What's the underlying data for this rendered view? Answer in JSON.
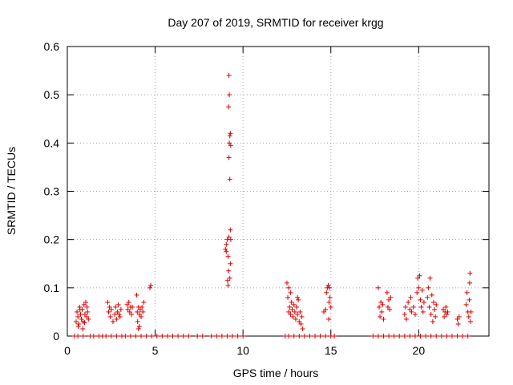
{
  "chart_data": {
    "type": "scatter",
    "title": "Day 207 of 2019, SRMTID for receiver krgg",
    "xlabel": "GPS time / hours",
    "ylabel": "SRMTID / TECUs",
    "xlim": [
      0,
      24
    ],
    "ylim": [
      0,
      0.6
    ],
    "xticks": [
      0,
      5,
      10,
      15,
      20
    ],
    "yticks": [
      0,
      0.1,
      0.2,
      0.3,
      0.4,
      0.5,
      0.6
    ],
    "xtick_labels": [
      "0",
      "5",
      "10",
      "15",
      "20"
    ],
    "ytick_labels": [
      "0",
      "0.1",
      "0.2",
      "0.3",
      "0.4",
      "0.5",
      "0.6"
    ],
    "grid": true,
    "marker": "+",
    "marker_color": "#e00000",
    "series": [
      {
        "name": "SRMTID",
        "points": [
          [
            0.5,
            0.03
          ],
          [
            0.55,
            0.05
          ],
          [
            0.6,
            0.04
          ],
          [
            0.65,
            0.025
          ],
          [
            0.7,
            0.06
          ],
          [
            0.75,
            0.045
          ],
          [
            0.8,
            0.035
          ],
          [
            0.85,
            0.055
          ],
          [
            0.9,
            0.03
          ],
          [
            0.95,
            0.065
          ],
          [
            1.0,
            0.045
          ],
          [
            1.05,
            0.07
          ],
          [
            1.1,
            0.04
          ],
          [
            1.15,
            0.05
          ],
          [
            1.2,
            0.035
          ],
          [
            0.62,
            0.02
          ],
          [
            0.88,
            0.015
          ],
          [
            1.12,
            0.06
          ],
          [
            0.72,
            0.055
          ],
          [
            0.98,
            0.028
          ],
          [
            2.3,
            0.07
          ],
          [
            2.35,
            0.05
          ],
          [
            2.4,
            0.06
          ],
          [
            2.45,
            0.04
          ],
          [
            2.5,
            0.055
          ],
          [
            2.7,
            0.045
          ],
          [
            2.75,
            0.06
          ],
          [
            2.8,
            0.035
          ],
          [
            2.85,
            0.05
          ],
          [
            2.9,
            0.065
          ],
          [
            3.0,
            0.04
          ],
          [
            3.05,
            0.055
          ],
          [
            2.6,
            0.03
          ],
          [
            2.95,
            0.045
          ],
          [
            3.4,
            0.065
          ],
          [
            3.45,
            0.055
          ],
          [
            3.5,
            0.07
          ],
          [
            3.55,
            0.05
          ],
          [
            3.6,
            0.06
          ],
          [
            3.65,
            0.045
          ],
          [
            3.7,
            0.06
          ],
          [
            3.95,
            0.085
          ],
          [
            4.0,
            0.03
          ],
          [
            4.05,
            0.06
          ],
          [
            4.1,
            0.045
          ],
          [
            4.15,
            0.055
          ],
          [
            4.2,
            0.04
          ],
          [
            4.25,
            0.06
          ],
          [
            4.3,
            0.05
          ],
          [
            4.35,
            0.07
          ],
          [
            4.05,
            0.015
          ],
          [
            4.1,
            0.02
          ],
          [
            3.98,
            0.05
          ],
          [
            4.7,
            0.1
          ],
          [
            4.75,
            0.105
          ],
          [
            9.0,
            0.18
          ],
          [
            9.05,
            0.19
          ],
          [
            9.1,
            0.2
          ],
          [
            9.12,
            0.115
          ],
          [
            9.15,
            0.105
          ],
          [
            9.18,
            0.135
          ],
          [
            9.2,
            0.54
          ],
          [
            9.22,
            0.5
          ],
          [
            9.18,
            0.475
          ],
          [
            9.2,
            0.37
          ],
          [
            9.22,
            0.4
          ],
          [
            9.25,
            0.415
          ],
          [
            9.28,
            0.42
          ],
          [
            9.3,
            0.395
          ],
          [
            9.25,
            0.325
          ],
          [
            9.28,
            0.22
          ],
          [
            9.2,
            0.205
          ],
          [
            9.3,
            0.2
          ],
          [
            9.28,
            0.15
          ],
          [
            9.25,
            0.12
          ],
          [
            9.05,
            0.175
          ],
          [
            9.15,
            0.165
          ],
          [
            12.5,
            0.11
          ],
          [
            12.55,
            0.08
          ],
          [
            12.6,
            0.05
          ],
          [
            12.65,
            0.06
          ],
          [
            12.7,
            0.045
          ],
          [
            12.75,
            0.07
          ],
          [
            12.8,
            0.055
          ],
          [
            12.85,
            0.04
          ],
          [
            12.9,
            0.065
          ],
          [
            12.95,
            0.05
          ],
          [
            13.0,
            0.035
          ],
          [
            13.05,
            0.06
          ],
          [
            13.1,
            0.045
          ],
          [
            13.15,
            0.075
          ],
          [
            13.2,
            0.03
          ],
          [
            13.25,
            0.05
          ],
          [
            13.3,
            0.025
          ],
          [
            13.35,
            0.04
          ],
          [
            13.4,
            0.015
          ],
          [
            12.6,
            0.1
          ],
          [
            12.7,
            0.09
          ],
          [
            13.1,
            0.08
          ],
          [
            14.6,
            0.05
          ],
          [
            14.7,
            0.055
          ],
          [
            14.75,
            0.09
          ],
          [
            14.8,
            0.1
          ],
          [
            14.85,
            0.105
          ],
          [
            14.9,
            0.07
          ],
          [
            14.95,
            0.08
          ],
          [
            15.0,
            0.06
          ],
          [
            14.88,
            0.035
          ],
          [
            14.92,
            0.1
          ],
          [
            17.7,
            0.1
          ],
          [
            17.75,
            0.06
          ],
          [
            17.8,
            0.04
          ],
          [
            17.85,
            0.07
          ],
          [
            17.9,
            0.05
          ],
          [
            17.95,
            0.065
          ],
          [
            18.0,
            0.035
          ],
          [
            18.2,
            0.09
          ],
          [
            18.25,
            0.06
          ],
          [
            18.3,
            0.075
          ],
          [
            18.35,
            0.055
          ],
          [
            18.4,
            0.08
          ],
          [
            19.2,
            0.045
          ],
          [
            19.25,
            0.06
          ],
          [
            19.3,
            0.035
          ],
          [
            19.4,
            0.07
          ],
          [
            19.5,
            0.055
          ],
          [
            19.55,
            0.08
          ],
          [
            19.6,
            0.05
          ],
          [
            19.7,
            0.06
          ],
          [
            19.8,
            0.045
          ],
          [
            19.9,
            0.09
          ],
          [
            19.95,
            0.12
          ],
          [
            20.0,
            0.1
          ],
          [
            20.05,
            0.125
          ],
          [
            20.1,
            0.075
          ],
          [
            20.15,
            0.06
          ],
          [
            20.2,
            0.095
          ],
          [
            20.25,
            0.05
          ],
          [
            20.3,
            0.07
          ],
          [
            20.5,
            0.08
          ],
          [
            20.55,
            0.1
          ],
          [
            20.6,
            0.06
          ],
          [
            20.65,
            0.12
          ],
          [
            20.7,
            0.045
          ],
          [
            20.75,
            0.085
          ],
          [
            20.8,
            0.03
          ],
          [
            20.85,
            0.07
          ],
          [
            20.9,
            0.055
          ],
          [
            20.95,
            0.04
          ],
          [
            21.0,
            0.065
          ],
          [
            21.4,
            0.055
          ],
          [
            21.45,
            0.04
          ],
          [
            21.5,
            0.05
          ],
          [
            21.55,
            0.06
          ],
          [
            21.6,
            0.045
          ],
          [
            21.65,
            0.05
          ],
          [
            22.2,
            0.035
          ],
          [
            22.25,
            0.025
          ],
          [
            22.3,
            0.04
          ],
          [
            22.7,
            0.065
          ],
          [
            22.75,
            0.09
          ],
          [
            22.8,
            0.05
          ],
          [
            22.85,
            0.04
          ],
          [
            22.9,
            0.11
          ],
          [
            22.92,
            0.13
          ],
          [
            22.95,
            0.03
          ],
          [
            22.98,
            0.05
          ],
          [
            22.88,
            0.075
          ],
          [
            0.4,
            0
          ],
          [
            0.6,
            0
          ],
          [
            0.9,
            0
          ],
          [
            1.3,
            0
          ],
          [
            1.5,
            0
          ],
          [
            1.8,
            0
          ],
          [
            2.0,
            0
          ],
          [
            2.2,
            0
          ],
          [
            2.5,
            0
          ],
          [
            2.8,
            0
          ],
          [
            3.1,
            0
          ],
          [
            3.3,
            0
          ],
          [
            3.6,
            0
          ],
          [
            3.9,
            0
          ],
          [
            4.2,
            0
          ],
          [
            4.5,
            0
          ],
          [
            4.8,
            0
          ],
          [
            5.1,
            0
          ],
          [
            5.4,
            0
          ],
          [
            5.7,
            0
          ],
          [
            6.0,
            0
          ],
          [
            6.3,
            0
          ],
          [
            6.6,
            0
          ],
          [
            6.9,
            0
          ],
          [
            7.4,
            0
          ],
          [
            7.7,
            0
          ],
          [
            8.2,
            0
          ],
          [
            8.5,
            0
          ],
          [
            8.8,
            0
          ],
          [
            9.1,
            0
          ],
          [
            9.4,
            0
          ],
          [
            9.7,
            0
          ],
          [
            10.0,
            0
          ],
          [
            12.4,
            0
          ],
          [
            12.6,
            0
          ],
          [
            12.9,
            0
          ],
          [
            13.2,
            0
          ],
          [
            13.5,
            0
          ],
          [
            13.8,
            0
          ],
          [
            14.1,
            0
          ],
          [
            14.4,
            0
          ],
          [
            14.7,
            0
          ],
          [
            15.0,
            0
          ],
          [
            15.2,
            0
          ],
          [
            17.4,
            0
          ],
          [
            17.7,
            0
          ],
          [
            18.0,
            0
          ],
          [
            18.3,
            0
          ],
          [
            18.6,
            0
          ],
          [
            18.9,
            0
          ],
          [
            19.2,
            0
          ],
          [
            19.5,
            0
          ],
          [
            19.8,
            0
          ],
          [
            20.1,
            0
          ],
          [
            20.4,
            0
          ],
          [
            20.7,
            0
          ],
          [
            21.0,
            0
          ],
          [
            21.3,
            0
          ],
          [
            21.6,
            0
          ],
          [
            21.9,
            0
          ],
          [
            22.2,
            0
          ],
          [
            22.5,
            0
          ],
          [
            22.8,
            0
          ]
        ]
      }
    ]
  }
}
